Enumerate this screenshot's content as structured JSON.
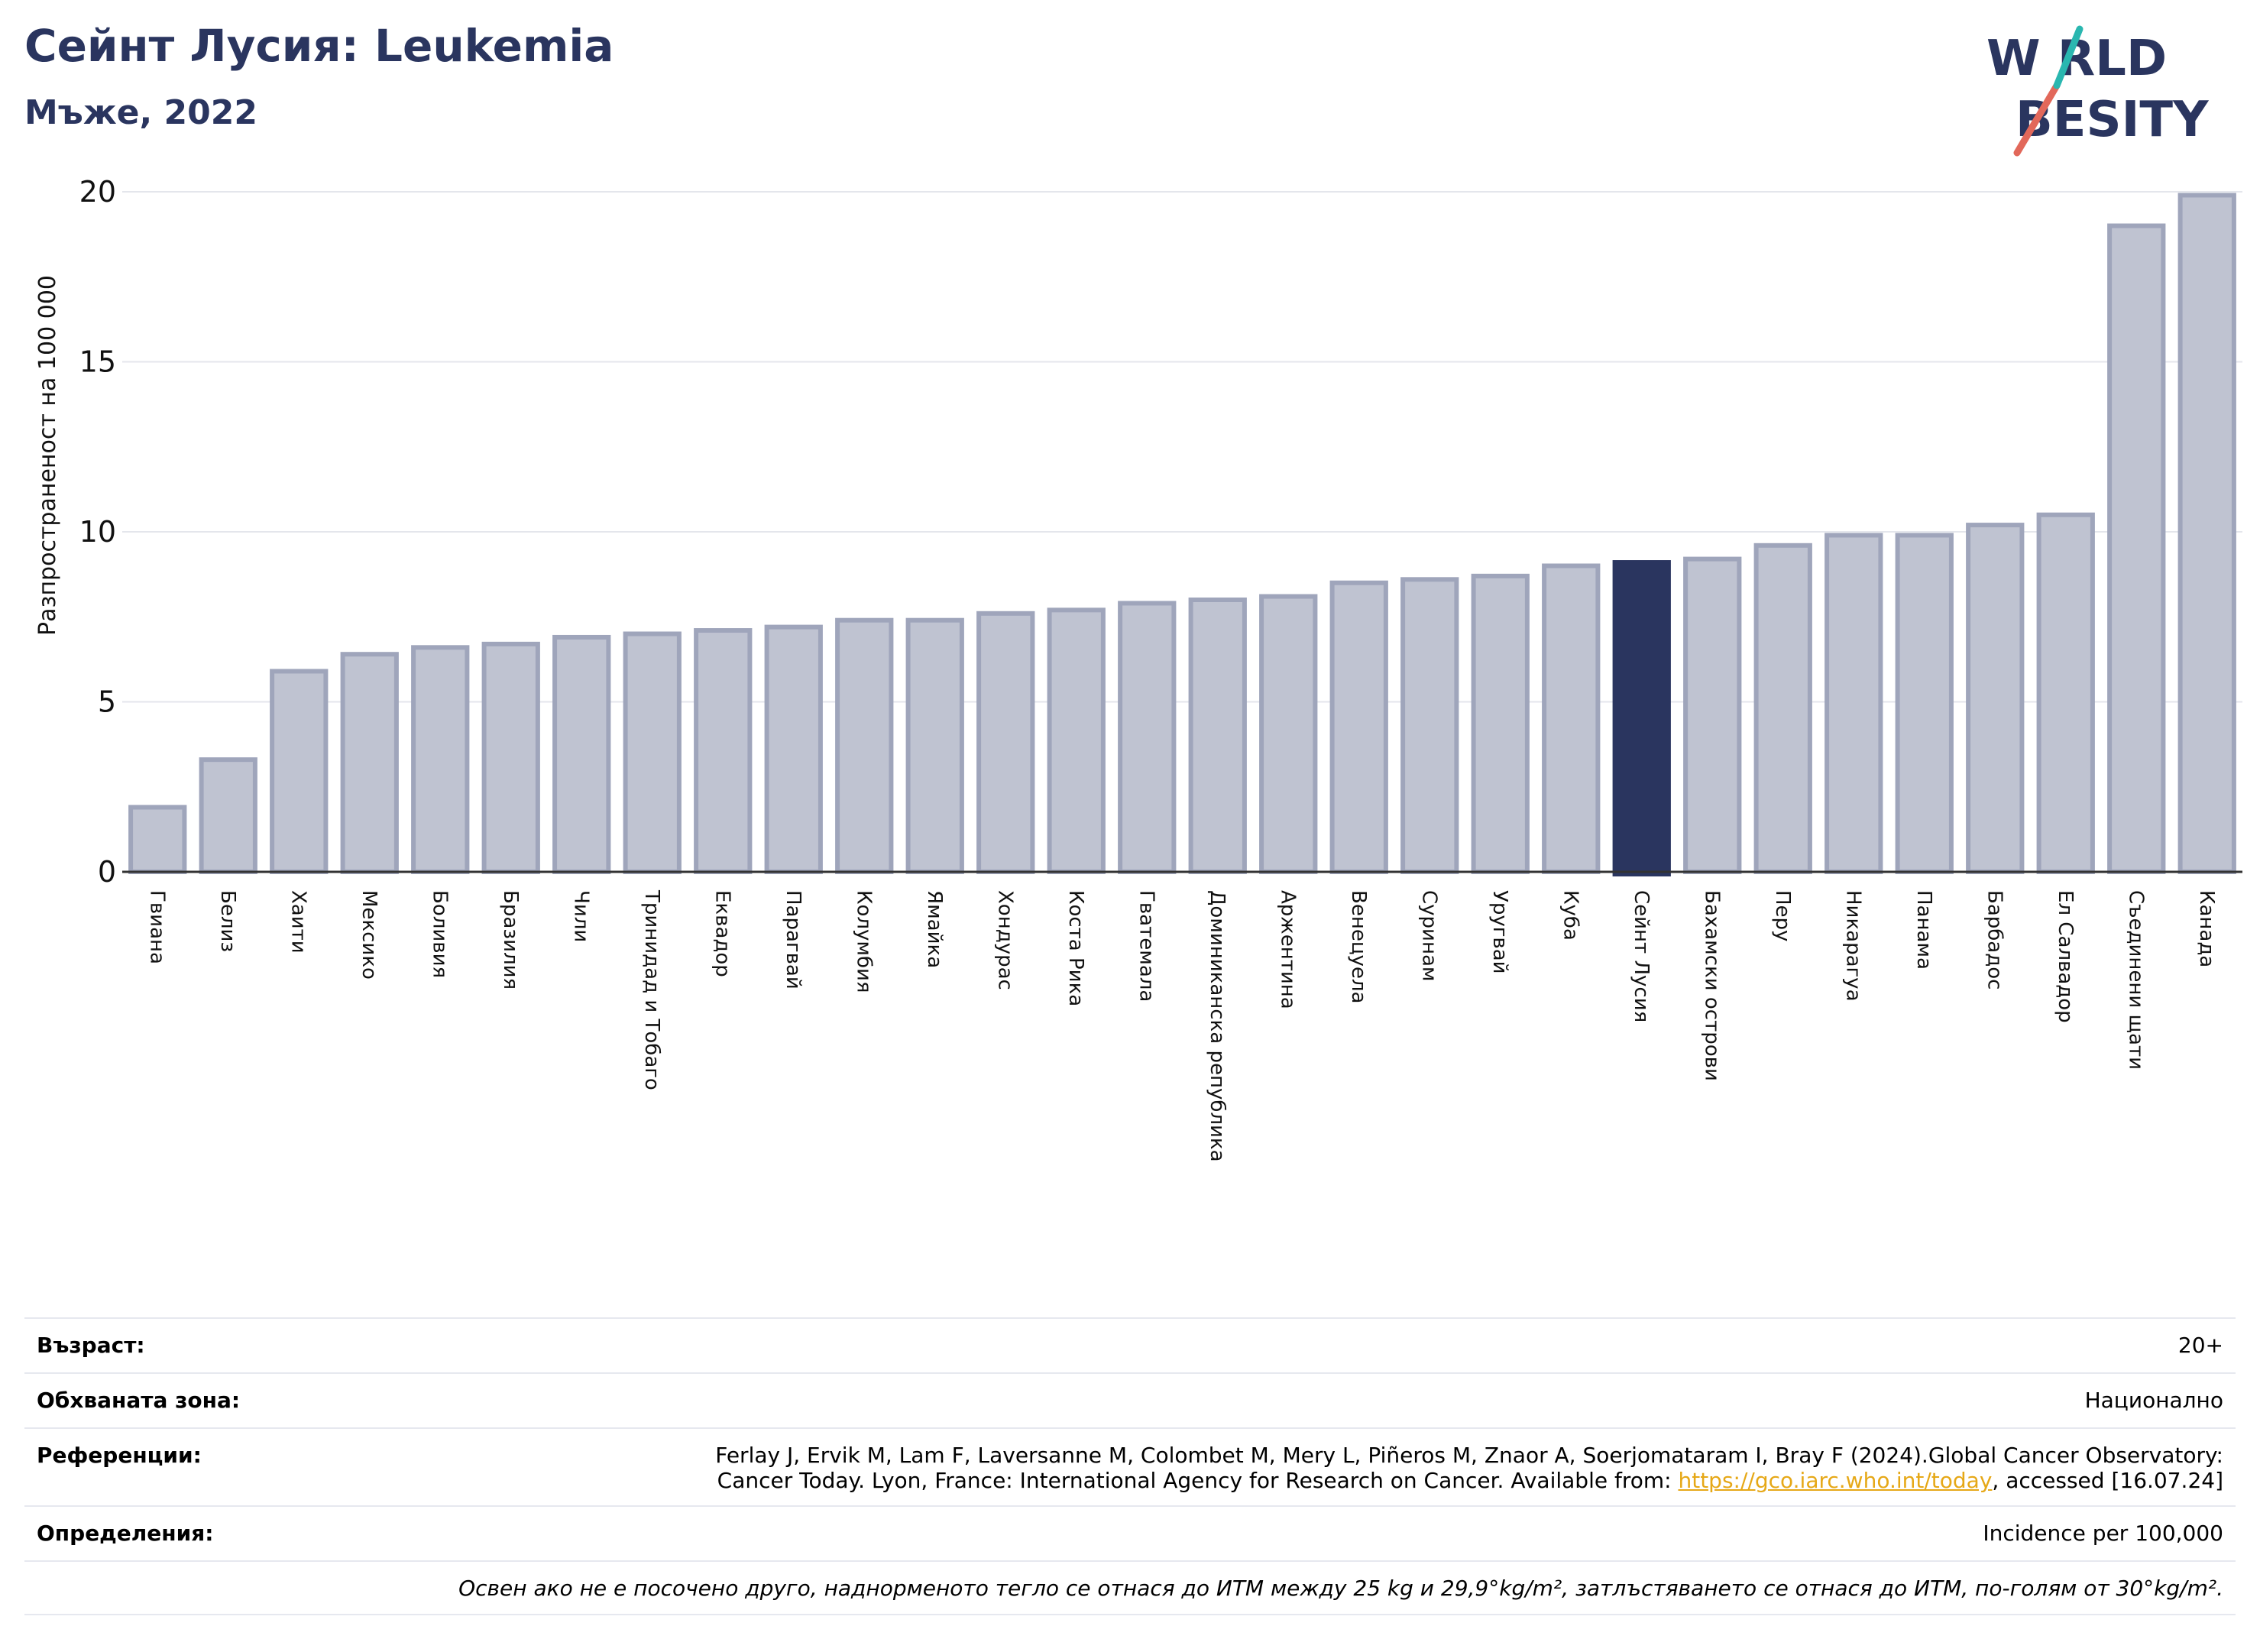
{
  "header": {
    "title": "Сейнт Лусия: Leukemia",
    "subtitle": "Мъже, 2022"
  },
  "logo": {
    "line1": "W RLD",
    "line2": "BESITY",
    "text": "WORLD OBESITY",
    "colors": {
      "text": "#2a355f",
      "slash_red": "#e2685a",
      "slash_teal": "#2ab7b0"
    }
  },
  "colors": {
    "bar_fill": "#bfc3d1",
    "bar_stroke": "#9fa5bb",
    "highlight": "#2a355f",
    "grid": "#e4e6ec",
    "title": "#2a355f"
  },
  "chart_data": {
    "type": "bar",
    "title": "Сейнт Лусия: Leukemia",
    "subtitle": "Мъже, 2022",
    "xlabel": "",
    "ylabel": "Разпространеност  на 100 000",
    "ylim": [
      0,
      20
    ],
    "yticks": [
      0,
      5,
      10,
      15,
      20
    ],
    "grid": true,
    "highlight": "Сейнт Лусия",
    "categories": [
      "Гвиана",
      "Белиз",
      "Хаити",
      "Мексико",
      "Боливия",
      "Бразилия",
      "Чили",
      "Тринидад и Тобаго",
      "Еквадор",
      "Парагвай",
      "Колумбия",
      "Ямайка",
      "Хондурас",
      "Коста Рика",
      "Гватемала",
      "Доминиканска република",
      "Аржентина",
      "Венецуела",
      "Суринам",
      "Уругвай",
      "Куба",
      "Сейнт Лусия",
      "Бахамски острови",
      "Перу",
      "Никарагуа",
      "Панама",
      "Барбадос",
      "Ел Салвадор",
      "Съединени щати",
      "Канада"
    ],
    "values": [
      1.9,
      3.3,
      5.9,
      6.4,
      6.6,
      6.7,
      6.9,
      7.0,
      7.1,
      7.2,
      7.4,
      7.4,
      7.6,
      7.7,
      7.9,
      8.0,
      8.1,
      8.5,
      8.6,
      8.7,
      9.0,
      9.1,
      9.2,
      9.6,
      9.9,
      9.9,
      10.2,
      10.5,
      19.0,
      19.9
    ]
  },
  "info": {
    "age_label": "Възраст:",
    "age_value": "20+",
    "coverage_label": "Обхваната зона:",
    "coverage_value": "Национално",
    "references_label": "Референции:",
    "references_line1": "Ferlay J, Ervik M, Lam F, Laversanne M, Colombet M, Mery L, Piñeros M, Znaor A, Soerjomataram I, Bray F (2024).Global Cancer Observatory:",
    "references_line2_pre": "Cancer Today. Lyon, France: International Agency for Research on Cancer. Available from: ",
    "references_link": "https://gco.iarc.who.int/today",
    "references_line2_post": ", accessed [16.07.24]",
    "definitions_label": "Определения:",
    "definitions_value": "Incidence per 100,000",
    "footnote": "Освен ако не е посочено друго, наднорменото тегло се отнася до ИТМ между 25 kg и 29,9°kg/m², затлъстяването се отнася до ИТМ, по-голям от 30°kg/m²."
  }
}
